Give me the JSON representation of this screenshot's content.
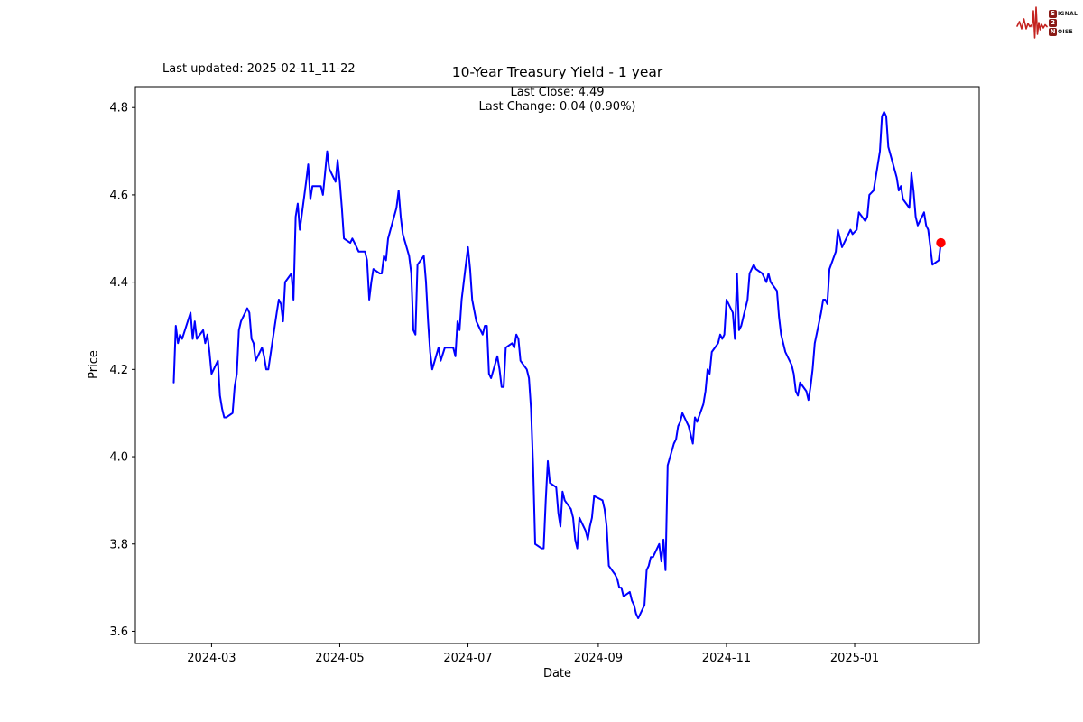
{
  "header": {
    "last_updated": "Last updated: 2025-02-11_11-22"
  },
  "logo": {
    "word_top_initial": "S",
    "word_top_rest": "IGNAL",
    "word_mid": "2",
    "word_bottom_initial": "N",
    "word_bottom_rest": "OISE",
    "waveform_color": "#c42320",
    "box_color": "#8a1a16",
    "text_color": "#181818"
  },
  "chart_data": {
    "type": "line",
    "title": "10-Year Treasury Yield - 1 year",
    "subtitle_lines": [
      "Last Close: 4.49",
      "Last Change: 0.04 (0.90%)"
    ],
    "xlabel": "Date",
    "ylabel": "Price",
    "line_color": "#0000ff",
    "marker_color": "#ff0000",
    "axis_color": "#000000",
    "grid": false,
    "legend": "none",
    "last_close": 4.49,
    "last_change": 0.04,
    "last_change_pct": "0.90%",
    "y_ticks": [
      3.6,
      3.8,
      4.0,
      4.2,
      4.4,
      4.6,
      4.8
    ],
    "x_ticks": [
      {
        "label": "2024-03",
        "date": "2024-03-01"
      },
      {
        "label": "2024-05",
        "date": "2024-05-01"
      },
      {
        "label": "2024-07",
        "date": "2024-07-01"
      },
      {
        "label": "2024-09",
        "date": "2024-09-01"
      },
      {
        "label": "2024-11",
        "date": "2024-11-01"
      },
      {
        "label": "2025-01",
        "date": "2025-01-01"
      }
    ],
    "x_range": {
      "start": "2024-02-12",
      "end": "2025-02-11"
    },
    "margin_frac": 0.05,
    "series": [
      {
        "name": "10-Year Treasury Yield",
        "dates": [
          "2024-02-12",
          "2024-02-13",
          "2024-02-14",
          "2024-02-15",
          "2024-02-16",
          "2024-02-20",
          "2024-02-21",
          "2024-02-22",
          "2024-02-23",
          "2024-02-26",
          "2024-02-27",
          "2024-02-28",
          "2024-02-29",
          "2024-03-01",
          "2024-03-04",
          "2024-03-05",
          "2024-03-06",
          "2024-03-07",
          "2024-03-08",
          "2024-03-11",
          "2024-03-12",
          "2024-03-13",
          "2024-03-14",
          "2024-03-15",
          "2024-03-18",
          "2024-03-19",
          "2024-03-20",
          "2024-03-21",
          "2024-03-22",
          "2024-03-25",
          "2024-03-26",
          "2024-03-27",
          "2024-03-28",
          "2024-04-01",
          "2024-04-02",
          "2024-04-03",
          "2024-04-04",
          "2024-04-05",
          "2024-04-08",
          "2024-04-09",
          "2024-04-10",
          "2024-04-11",
          "2024-04-12",
          "2024-04-15",
          "2024-04-16",
          "2024-04-17",
          "2024-04-18",
          "2024-04-19",
          "2024-04-22",
          "2024-04-23",
          "2024-04-24",
          "2024-04-25",
          "2024-04-26",
          "2024-04-29",
          "2024-04-30",
          "2024-05-01",
          "2024-05-02",
          "2024-05-03",
          "2024-05-06",
          "2024-05-07",
          "2024-05-08",
          "2024-05-09",
          "2024-05-10",
          "2024-05-13",
          "2024-05-14",
          "2024-05-15",
          "2024-05-16",
          "2024-05-17",
          "2024-05-20",
          "2024-05-21",
          "2024-05-22",
          "2024-05-23",
          "2024-05-24",
          "2024-05-28",
          "2024-05-29",
          "2024-05-30",
          "2024-05-31",
          "2024-06-03",
          "2024-06-04",
          "2024-06-05",
          "2024-06-06",
          "2024-06-07",
          "2024-06-10",
          "2024-06-11",
          "2024-06-12",
          "2024-06-13",
          "2024-06-14",
          "2024-06-17",
          "2024-06-18",
          "2024-06-20",
          "2024-06-21",
          "2024-06-24",
          "2024-06-25",
          "2024-06-26",
          "2024-06-27",
          "2024-06-28",
          "2024-07-01",
          "2024-07-02",
          "2024-07-03",
          "2024-07-05",
          "2024-07-08",
          "2024-07-09",
          "2024-07-10",
          "2024-07-11",
          "2024-07-12",
          "2024-07-15",
          "2024-07-16",
          "2024-07-17",
          "2024-07-18",
          "2024-07-19",
          "2024-07-22",
          "2024-07-23",
          "2024-07-24",
          "2024-07-25",
          "2024-07-26",
          "2024-07-29",
          "2024-07-30",
          "2024-07-31",
          "2024-08-01",
          "2024-08-02",
          "2024-08-05",
          "2024-08-06",
          "2024-08-07",
          "2024-08-08",
          "2024-08-09",
          "2024-08-12",
          "2024-08-13",
          "2024-08-14",
          "2024-08-15",
          "2024-08-16",
          "2024-08-19",
          "2024-08-20",
          "2024-08-21",
          "2024-08-22",
          "2024-08-23",
          "2024-08-26",
          "2024-08-27",
          "2024-08-28",
          "2024-08-29",
          "2024-08-30",
          "2024-09-03",
          "2024-09-04",
          "2024-09-05",
          "2024-09-06",
          "2024-09-09",
          "2024-09-10",
          "2024-09-11",
          "2024-09-12",
          "2024-09-13",
          "2024-09-16",
          "2024-09-17",
          "2024-09-18",
          "2024-09-19",
          "2024-09-20",
          "2024-09-23",
          "2024-09-24",
          "2024-09-25",
          "2024-09-26",
          "2024-09-27",
          "2024-09-30",
          "2024-10-01",
          "2024-10-02",
          "2024-10-03",
          "2024-10-04",
          "2024-10-07",
          "2024-10-08",
          "2024-10-09",
          "2024-10-10",
          "2024-10-11",
          "2024-10-14",
          "2024-10-15",
          "2024-10-16",
          "2024-10-17",
          "2024-10-18",
          "2024-10-21",
          "2024-10-22",
          "2024-10-23",
          "2024-10-24",
          "2024-10-25",
          "2024-10-28",
          "2024-10-29",
          "2024-10-30",
          "2024-10-31",
          "2024-11-01",
          "2024-11-04",
          "2024-11-05",
          "2024-11-06",
          "2024-11-07",
          "2024-11-08",
          "2024-11-11",
          "2024-11-12",
          "2024-11-13",
          "2024-11-14",
          "2024-11-15",
          "2024-11-18",
          "2024-11-19",
          "2024-11-20",
          "2024-11-21",
          "2024-11-22",
          "2024-11-25",
          "2024-11-26",
          "2024-11-27",
          "2024-11-29",
          "2024-12-02",
          "2024-12-03",
          "2024-12-04",
          "2024-12-05",
          "2024-12-06",
          "2024-12-09",
          "2024-12-10",
          "2024-12-11",
          "2024-12-12",
          "2024-12-13",
          "2024-12-16",
          "2024-12-17",
          "2024-12-18",
          "2024-12-19",
          "2024-12-20",
          "2024-12-23",
          "2024-12-24",
          "2024-12-26",
          "2024-12-27",
          "2024-12-30",
          "2024-12-31",
          "2025-01-02",
          "2025-01-03",
          "2025-01-06",
          "2025-01-07",
          "2025-01-08",
          "2025-01-10",
          "2025-01-13",
          "2025-01-14",
          "2025-01-15",
          "2025-01-16",
          "2025-01-17",
          "2025-01-21",
          "2025-01-22",
          "2025-01-23",
          "2025-01-24",
          "2025-01-27",
          "2025-01-28",
          "2025-01-29",
          "2025-01-30",
          "2025-01-31",
          "2025-02-03",
          "2025-02-04",
          "2025-02-05",
          "2025-02-06",
          "2025-02-07",
          "2025-02-10",
          "2025-02-11"
        ],
        "values": [
          4.17,
          4.3,
          4.26,
          4.28,
          4.27,
          4.33,
          4.27,
          4.31,
          4.27,
          4.29,
          4.26,
          4.28,
          4.24,
          4.19,
          4.22,
          4.14,
          4.11,
          4.09,
          4.09,
          4.1,
          4.16,
          4.19,
          4.29,
          4.31,
          4.34,
          4.33,
          4.27,
          4.26,
          4.22,
          4.25,
          4.23,
          4.2,
          4.2,
          4.33,
          4.36,
          4.35,
          4.31,
          4.4,
          4.42,
          4.36,
          4.55,
          4.58,
          4.52,
          4.63,
          4.67,
          4.59,
          4.62,
          4.62,
          4.62,
          4.6,
          4.65,
          4.7,
          4.66,
          4.63,
          4.68,
          4.63,
          4.57,
          4.5,
          4.49,
          4.5,
          4.49,
          4.48,
          4.47,
          4.47,
          4.45,
          4.36,
          4.4,
          4.43,
          4.42,
          4.42,
          4.46,
          4.45,
          4.5,
          4.57,
          4.61,
          4.55,
          4.51,
          4.46,
          4.42,
          4.29,
          4.28,
          4.44,
          4.46,
          4.4,
          4.31,
          4.24,
          4.2,
          4.25,
          4.22,
          4.25,
          4.25,
          4.25,
          4.23,
          4.31,
          4.29,
          4.36,
          4.48,
          4.43,
          4.36,
          4.31,
          4.28,
          4.3,
          4.3,
          4.19,
          4.18,
          4.23,
          4.2,
          4.16,
          4.16,
          4.25,
          4.26,
          4.25,
          4.28,
          4.27,
          4.22,
          4.2,
          4.18,
          4.11,
          3.98,
          3.8,
          3.79,
          3.79,
          3.9,
          3.99,
          3.94,
          3.93,
          3.87,
          3.84,
          3.92,
          3.9,
          3.88,
          3.86,
          3.81,
          3.79,
          3.86,
          3.83,
          3.81,
          3.84,
          3.86,
          3.91,
          3.9,
          3.88,
          3.84,
          3.75,
          3.73,
          3.72,
          3.7,
          3.7,
          3.68,
          3.69,
          3.67,
          3.66,
          3.64,
          3.63,
          3.66,
          3.74,
          3.75,
          3.77,
          3.77,
          3.8,
          3.76,
          3.81,
          3.74,
          3.98,
          4.03,
          4.04,
          4.07,
          4.08,
          4.1,
          4.07,
          4.05,
          4.03,
          4.09,
          4.08,
          4.12,
          4.15,
          4.2,
          4.19,
          4.24,
          4.26,
          4.28,
          4.27,
          4.28,
          4.36,
          4.33,
          4.27,
          4.42,
          4.29,
          4.3,
          4.36,
          4.42,
          4.43,
          4.44,
          4.43,
          4.42,
          4.41,
          4.4,
          4.42,
          4.4,
          4.38,
          4.32,
          4.28,
          4.24,
          4.21,
          4.19,
          4.15,
          4.14,
          4.17,
          4.15,
          4.13,
          4.16,
          4.2,
          4.26,
          4.33,
          4.36,
          4.36,
          4.35,
          4.43,
          4.47,
          4.52,
          4.48,
          4.49,
          4.52,
          4.51,
          4.52,
          4.56,
          4.54,
          4.55,
          4.6,
          4.61,
          4.7,
          4.78,
          4.79,
          4.78,
          4.71,
          4.64,
          4.61,
          4.62,
          4.59,
          4.57,
          4.65,
          4.61,
          4.55,
          4.53,
          4.56,
          4.53,
          4.52,
          4.48,
          4.44,
          4.45,
          4.49
        ]
      }
    ],
    "last_point": {
      "date": "2025-02-11",
      "value": 4.49
    }
  }
}
